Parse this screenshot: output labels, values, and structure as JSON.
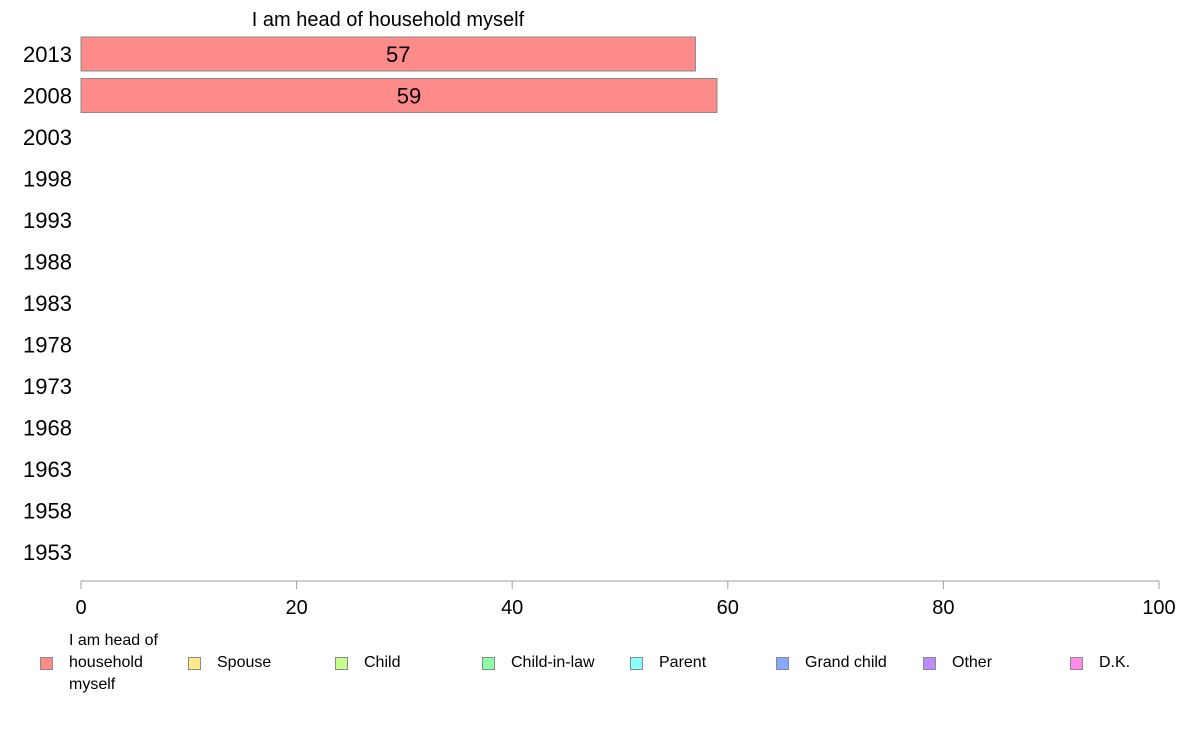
{
  "chart_data": {
    "type": "bar",
    "orientation": "horizontal",
    "title": "I am head of household myself",
    "categories": [
      "2013",
      "2008",
      "2003",
      "1998",
      "1993",
      "1988",
      "1983",
      "1978",
      "1973",
      "1968",
      "1963",
      "1958",
      "1953"
    ],
    "series": [
      {
        "name": "I am head of household myself",
        "color": "#ff8a8a",
        "values": [
          57,
          59,
          null,
          null,
          null,
          null,
          null,
          null,
          null,
          null,
          null,
          null,
          null
        ],
        "labels": [
          "57",
          "59",
          "",
          "",
          "",
          "",
          "",
          "",
          "",
          "",
          "",
          "",
          ""
        ]
      }
    ],
    "xlim": [
      0,
      100
    ],
    "xticks": [
      "0",
      "20",
      "40",
      "60",
      "80",
      "100"
    ],
    "grid": false,
    "legend_position": "bottom"
  },
  "legend": {
    "items": [
      {
        "label": "I am head of\nhousehold\nmyself",
        "color": "#ff8a8a"
      },
      {
        "label": "Spouse",
        "color": "#ffe88a"
      },
      {
        "label": "Child",
        "color": "#c8ff8a"
      },
      {
        "label": "Child-in-law",
        "color": "#8affa8"
      },
      {
        "label": "Parent",
        "color": "#8affff"
      },
      {
        "label": "Grand child",
        "color": "#8aa8ff"
      },
      {
        "label": "Other",
        "color": "#c08aff"
      },
      {
        "label": "D.K.",
        "color": "#ff8ae8"
      }
    ]
  }
}
